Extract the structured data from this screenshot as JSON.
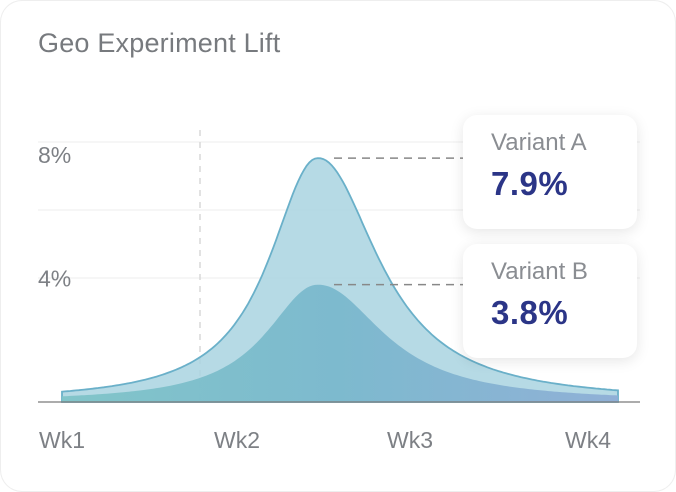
{
  "chart_data": {
    "type": "area",
    "title": "Geo Experiment Lift",
    "categories": [
      "Wk1",
      "Wk2",
      "Wk3",
      "Wk4"
    ],
    "y_ticks": [
      "4%",
      "8%"
    ],
    "ylim": [
      0,
      8
    ],
    "grid": true,
    "series": [
      {
        "name": "Variant A",
        "peak": 7.9,
        "peak_label": "7.9%",
        "color": "#a9d4e1",
        "stroke": "#6ab0c9"
      },
      {
        "name": "Variant B",
        "peak": 3.8,
        "peak_label": "3.8%",
        "color": "#7fb9cf",
        "stroke": "#6ab0c9"
      }
    ]
  }
}
